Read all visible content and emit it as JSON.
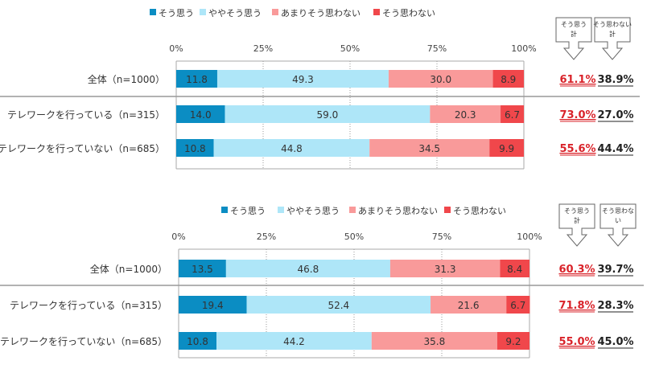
{
  "chart_data": [
    {
      "type": "bar",
      "orientation": "horizontal",
      "stacked": true,
      "title": "",
      "xlabel": "",
      "ylabel": "",
      "xlim": [
        0,
        100
      ],
      "ticks": [
        "0%",
        "25%",
        "50%",
        "75%",
        "100%"
      ],
      "grid": true,
      "legend_position": "top",
      "categories": [
        "全体（n=1000）",
        "テレワークを行っている（n=315）",
        "テレワークを行っていない（n=685）"
      ],
      "series": [
        {
          "name": "そう思う",
          "color": "#0b8dc3",
          "values": [
            11.8,
            14.0,
            10.8
          ]
        },
        {
          "name": "ややそう思う",
          "color": "#aee6f8",
          "values": [
            49.3,
            59.0,
            44.8
          ]
        },
        {
          "name": "あまりそう思わない",
          "color": "#f99a9a",
          "values": [
            30.0,
            20.3,
            34.5
          ]
        },
        {
          "name": "そう思わない",
          "color": "#f0474b",
          "values": [
            8.9,
            6.7,
            9.9
          ]
        }
      ],
      "value_labels": [
        [
          "11.8",
          "49.3",
          "30.0",
          "8.9"
        ],
        [
          "14.0",
          "59.0",
          "20.3",
          "6.7"
        ],
        [
          "10.8",
          "44.8",
          "34.5",
          "9.9"
        ]
      ],
      "summary": {
        "headers": [
          "そう思う計",
          "そう思わない計"
        ],
        "header_lines": [
          [
            "そう思う",
            "計"
          ],
          [
            "そう思わない",
            "計"
          ]
        ],
        "agree_total": [
          "61.1%",
          "73.0%",
          "55.6%"
        ],
        "disagree_total": [
          "38.9%",
          "27.0%",
          "44.4%"
        ]
      }
    },
    {
      "type": "bar",
      "orientation": "horizontal",
      "stacked": true,
      "title": "",
      "xlabel": "",
      "ylabel": "",
      "xlim": [
        0,
        100
      ],
      "ticks": [
        "0%",
        "25%",
        "50%",
        "75%",
        "100%"
      ],
      "grid": true,
      "legend_position": "top",
      "categories": [
        "全体（n=1000）",
        "テレワークを行っている（n=315）",
        "テレワークを行っていない（n=685）"
      ],
      "series": [
        {
          "name": "そう思う",
          "color": "#0b8dc3",
          "values": [
            13.5,
            19.4,
            10.8
          ]
        },
        {
          "name": "ややそう思う",
          "color": "#aee6f8",
          "values": [
            46.8,
            52.4,
            44.2
          ]
        },
        {
          "name": "あまりそう思わない",
          "color": "#f99a9a",
          "values": [
            31.3,
            21.6,
            35.8
          ]
        },
        {
          "name": "そう思わない",
          "color": "#f0474b",
          "values": [
            8.4,
            6.7,
            9.2
          ]
        }
      ],
      "value_labels": [
        [
          "13.5",
          "46.8",
          "31.3",
          "8.4"
        ],
        [
          "19.4",
          "52.4",
          "21.6",
          "6.7"
        ],
        [
          "10.8",
          "44.2",
          "35.8",
          "9.2"
        ]
      ],
      "summary": {
        "headers": [
          "そう思う計",
          "そう思わない"
        ],
        "header_lines": [
          [
            "そう思う",
            "計"
          ],
          [
            "そう思わな",
            "い"
          ]
        ],
        "agree_total": [
          "60.3%",
          "71.8%",
          "55.0%"
        ],
        "disagree_total": [
          "39.7%",
          "28.3%",
          "45.0%"
        ]
      }
    }
  ],
  "colors": {
    "agree_total_text": "#d9232a",
    "disagree_total_text": "#222222",
    "label_text": "#333333",
    "grid": "#999999",
    "frame": "#aaaaaa"
  }
}
